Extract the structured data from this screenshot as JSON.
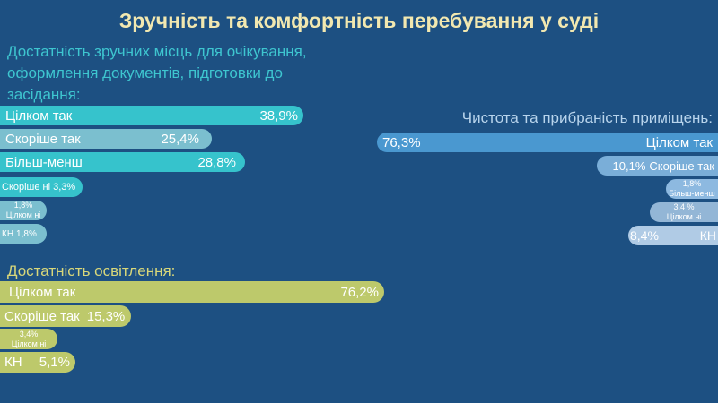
{
  "title": "Зручність та комфортність перебування у суді",
  "seating": {
    "heading": "Достатність зручних місць для очікування,  оформлення документів, підготовки до засідання:",
    "bars": [
      {
        "label": "Цілком так",
        "value": "38,9%"
      },
      {
        "label": "Скоріше так",
        "value": "25,4%"
      },
      {
        "label": "Більш-менш",
        "value": "28,8%"
      },
      {
        "label": "Скоріше ні",
        "value": "3,3%"
      },
      {
        "label": "Цілком ні",
        "value": "1,8%"
      },
      {
        "label": "КН",
        "value": "1,8%"
      }
    ]
  },
  "cleanliness": {
    "heading": "Чистота та прибраність приміщень:",
    "bars": [
      {
        "label": "Цілком так",
        "value": "76,3%"
      },
      {
        "label": "Скоріше так",
        "value": "10,1%"
      },
      {
        "label": "Більш-менш",
        "value": "1,8%"
      },
      {
        "label": "Цілком ні",
        "value": "3,4 %"
      },
      {
        "label": "КН",
        "value": "8,4%"
      }
    ]
  },
  "lighting": {
    "heading": "Достатність освітлення:",
    "bars": [
      {
        "label": "Цілком так",
        "value": "76,2%"
      },
      {
        "label": "Скоріше так",
        "value": "15,3%"
      },
      {
        "label": "Цілком ні",
        "value": "3,4%"
      },
      {
        "label": "КН",
        "value": "5,1%"
      }
    ]
  }
}
